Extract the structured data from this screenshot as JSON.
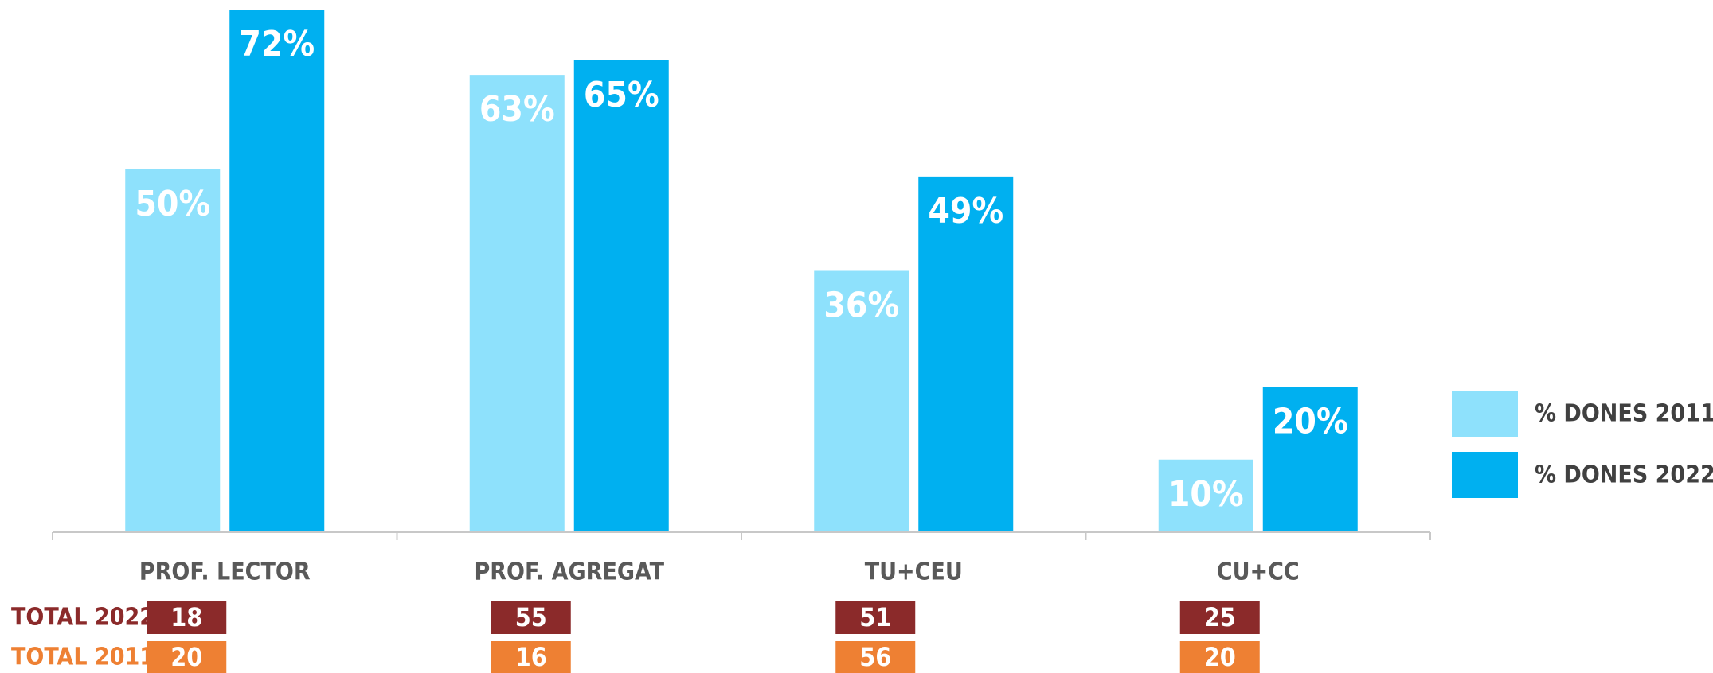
{
  "chart_data": {
    "type": "bar",
    "categories": [
      "PROF. LECTOR",
      "PROF. AGREGAT",
      "TU+CEU",
      "CU+CC"
    ],
    "series": [
      {
        "name": "% DONES 2011",
        "color": "#8ee1fc",
        "values": [
          50,
          63,
          36,
          10
        ],
        "value_labels": [
          "50%",
          "63%",
          "36%",
          "10%"
        ]
      },
      {
        "name": "% DONES 2022",
        "color": "#00b0f0",
        "values": [
          72,
          65,
          49,
          20
        ],
        "value_labels": [
          "72%",
          "65%",
          "49%",
          "20%"
        ]
      }
    ],
    "ylim": [
      0,
      72
    ],
    "legend": "right",
    "totals": [
      {
        "name": "TOTAL 2022",
        "color": "#8b2a2a",
        "values": [
          18,
          55,
          51,
          25
        ]
      },
      {
        "name": "TOTAL 2011",
        "color": "#ee8033",
        "values": [
          20,
          16,
          56,
          20
        ]
      }
    ]
  }
}
